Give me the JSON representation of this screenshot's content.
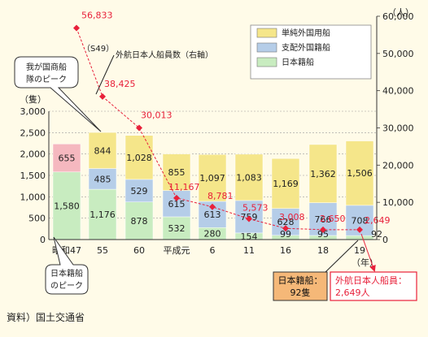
{
  "source_note": "資料）国土交通省",
  "chart_data": {
    "type": "bar",
    "categories": [
      "昭和47",
      "55",
      "60",
      "平成元",
      "6",
      "11",
      "16",
      "18",
      "19"
    ],
    "x_unit": "（年）",
    "ylim_left": [
      0,
      3000
    ],
    "ylim_right": [
      0,
      60000
    ],
    "y_unit_left": "（隻）",
    "y_unit_right": "（人）",
    "left_ticks": [
      "0",
      "500",
      "1,000",
      "1,500",
      "2,000",
      "2,500",
      "3,000"
    ],
    "right_ticks": [
      "0",
      "10,000",
      "20,000",
      "30,000",
      "40,000",
      "50,000",
      "60,000"
    ],
    "series": [
      {
        "name": "日本籍船",
        "color": "#c8ecc0",
        "values": [
          1580,
          1176,
          878,
          532,
          280,
          154,
          99,
          95,
          92
        ],
        "labels": [
          "1,580",
          "1,176",
          "878",
          "532",
          "280",
          "154",
          "99",
          "95",
          "92"
        ]
      },
      {
        "name": "支配外国籍船",
        "color": "#b5cde8",
        "values": [
          0,
          485,
          529,
          615,
          613,
          759,
          628,
          766,
          708
        ],
        "labels": [
          "",
          "485",
          "529",
          "615",
          "613",
          "759",
          "628",
          "766",
          "708"
        ]
      },
      {
        "name": "単純外国用船",
        "color": "#f5e68a",
        "values": [
          0,
          844,
          1028,
          855,
          1097,
          1083,
          1169,
          1362,
          1506
        ],
        "labels": [
          "",
          "844",
          "1,028",
          "855",
          "1,097",
          "1,083",
          "1,169",
          "1,362",
          "1,506"
        ]
      }
    ],
    "extra_segment": {
      "category": "昭和47",
      "value": 655,
      "label": "655",
      "color": "#f5b8bf"
    },
    "line_series": {
      "name": "外航日本人船員数（右軸）",
      "color": "#e8203a",
      "x": [
        "49",
        "55",
        "60",
        "平成元",
        "6",
        "11",
        "16",
        "18",
        "19"
      ],
      "values": [
        56833,
        38425,
        30013,
        11167,
        8781,
        5573,
        3008,
        2650,
        2649
      ],
      "labels": [
        "56,833",
        "38,425",
        "30,013",
        "11,167",
        "8,781",
        "5,573",
        "3,008",
        "2,650",
        "2,649"
      ],
      "first_sublabel": "（S49）"
    }
  },
  "callouts": {
    "peak_fleet": "我が国商船隊のピーク",
    "peak_japanese": "日本籍船のピーク",
    "box_ships_title": "日本籍船：",
    "box_ships_value": "92隻",
    "box_crew_title": "外航日本人船員：",
    "box_crew_value": "2,649人"
  }
}
